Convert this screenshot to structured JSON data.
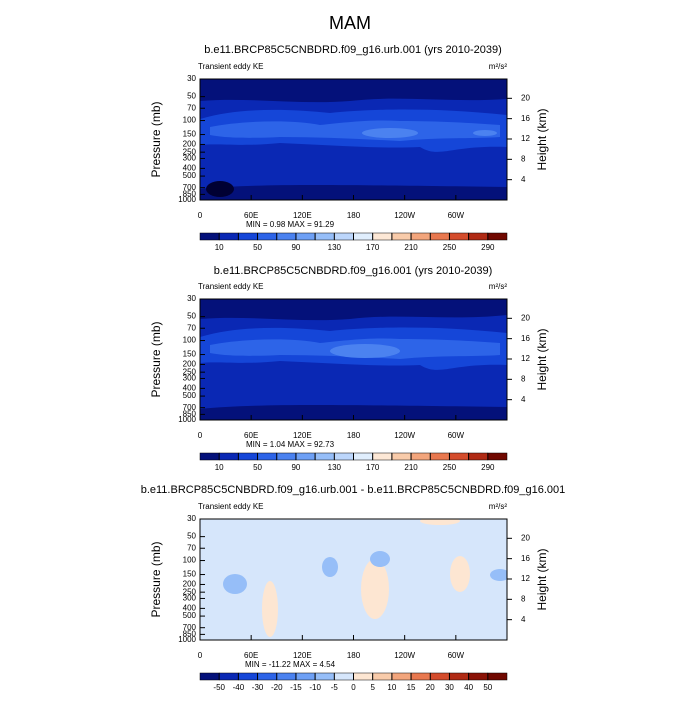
{
  "title": "MAM",
  "chart_data": [
    {
      "type": "contour",
      "title": "b.e11.BRCP85C5CNBDRD.f09_g16.urb.001 (yrs 2010-2039)",
      "subtitle": "Transient eddy KE",
      "units": "m²/s²",
      "ylabel": "Pressure (mb)",
      "y2label": "Height (km)",
      "stats": "MIN =   0.98  MAX =  91.29",
      "xlim": [
        0,
        360
      ],
      "xticks": [
        0,
        {
          "value": 60,
          "label": "60E"
        },
        {
          "value": 120,
          "label": "120E"
        },
        180,
        {
          "value": 240,
          "label": "120W"
        },
        {
          "value": 300,
          "label": "60W"
        }
      ],
      "ylim": [
        1000,
        30
      ],
      "ylog": true,
      "yticks": [
        30,
        50,
        70,
        100,
        150,
        200,
        250,
        300,
        400,
        500,
        700,
        850,
        1000
      ],
      "y2lim": [
        0,
        23.8
      ],
      "y2ticks": [
        4,
        8,
        12,
        16,
        20
      ],
      "colorbar": {
        "levels": [
          10,
          30,
          50,
          70,
          90,
          110,
          130,
          150,
          170,
          190,
          210,
          230,
          250,
          270,
          290
        ],
        "ticks": [
          10,
          50,
          90,
          130,
          170,
          210,
          250,
          290
        ],
        "colors": [
          "#04117a",
          "#0a28b4",
          "#1546d8",
          "#2d64e8",
          "#4b82f0",
          "#6ea0f5",
          "#96bef8",
          "#bcd6fb",
          "#e0eefd",
          "#fde8d6",
          "#f8cbaa",
          "#f2a57c",
          "#e8784f",
          "#d44c2c",
          "#b02a14",
          "#700800"
        ]
      }
    },
    {
      "type": "contour",
      "title": "b.e11.BRCP85C5CNBDRD.f09_g16.001 (yrs 2010-2039)",
      "subtitle": "Transient eddy KE",
      "units": "m²/s²",
      "ylabel": "Pressure (mb)",
      "y2label": "Height (km)",
      "stats": "MIN =   1.04  MAX =  92.73",
      "xlim": [
        0,
        360
      ],
      "xticks": [
        0,
        {
          "value": 60,
          "label": "60E"
        },
        {
          "value": 120,
          "label": "120E"
        },
        180,
        {
          "value": 240,
          "label": "120W"
        },
        {
          "value": 300,
          "label": "60W"
        }
      ],
      "ylim": [
        1000,
        30
      ],
      "ylog": true,
      "yticks": [
        30,
        50,
        70,
        100,
        150,
        200,
        250,
        300,
        400,
        500,
        700,
        850,
        1000
      ],
      "y2lim": [
        0,
        23.8
      ],
      "y2ticks": [
        4,
        8,
        12,
        16,
        20
      ],
      "colorbar": {
        "levels": [
          10,
          30,
          50,
          70,
          90,
          110,
          130,
          150,
          170,
          190,
          210,
          230,
          250,
          270,
          290
        ],
        "ticks": [
          10,
          50,
          90,
          130,
          170,
          210,
          250,
          290
        ],
        "colors": [
          "#04117a",
          "#0a28b4",
          "#1546d8",
          "#2d64e8",
          "#4b82f0",
          "#6ea0f5",
          "#96bef8",
          "#bcd6fb",
          "#e0eefd",
          "#fde8d6",
          "#f8cbaa",
          "#f2a57c",
          "#e8784f",
          "#d44c2c",
          "#b02a14",
          "#700800"
        ]
      }
    },
    {
      "type": "contour",
      "title": "b.e11.BRCP85C5CNBDRD.f09_g16.urb.001 - b.e11.BRCP85C5CNBDRD.f09_g16.001",
      "subtitle": "Transient eddy KE",
      "units": "m²/s²",
      "ylabel": "Pressure (mb)",
      "y2label": "Height (km)",
      "stats": "MIN = -11.22  MAX =   4.54",
      "xlim": [
        0,
        360
      ],
      "xticks": [
        0,
        {
          "value": 60,
          "label": "60E"
        },
        {
          "value": 120,
          "label": "120E"
        },
        180,
        {
          "value": 240,
          "label": "120W"
        },
        {
          "value": 300,
          "label": "60W"
        }
      ],
      "ylim": [
        1000,
        30
      ],
      "ylog": true,
      "yticks": [
        30,
        50,
        70,
        100,
        150,
        200,
        250,
        300,
        400,
        500,
        700,
        850,
        1000
      ],
      "y2lim": [
        0,
        23.8
      ],
      "y2ticks": [
        4,
        8,
        12,
        16,
        20
      ],
      "colorbar": {
        "levels": [
          -50,
          -40,
          -30,
          -20,
          -15,
          -10,
          -5,
          0,
          5,
          10,
          15,
          20,
          30,
          40,
          50
        ],
        "ticks": [
          -50,
          -40,
          -30,
          -20,
          -15,
          -10,
          -5,
          0,
          5,
          10,
          15,
          20,
          30,
          40,
          50
        ],
        "colors": [
          "#04117a",
          "#0a28b4",
          "#1546d8",
          "#2d64e8",
          "#4b82f0",
          "#6ea0f5",
          "#96bef8",
          "#d6e6fb",
          "#fde6d2",
          "#f8cbaa",
          "#f2a57c",
          "#e8784f",
          "#d44c2c",
          "#b02a14",
          "#8a1206",
          "#700800"
        ]
      }
    }
  ]
}
